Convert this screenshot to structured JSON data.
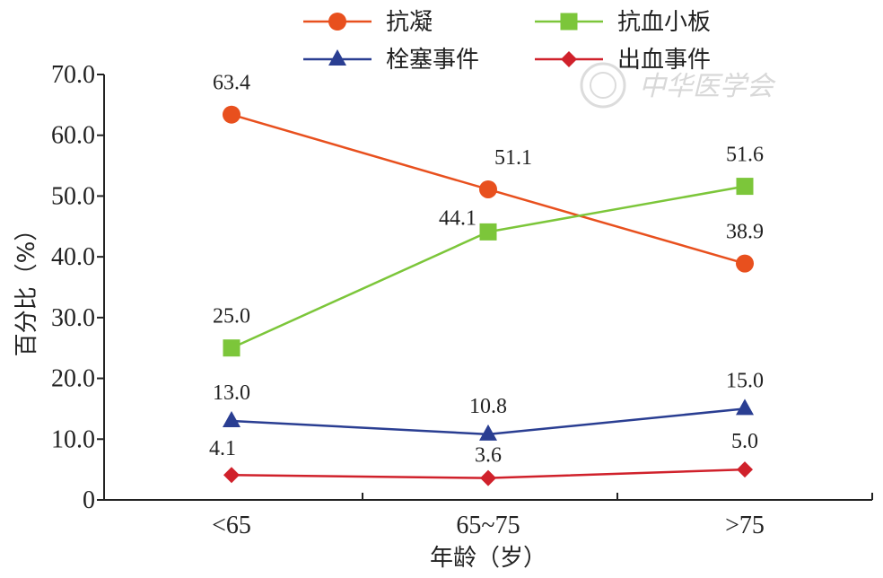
{
  "chart_data": {
    "type": "line",
    "categories": [
      "<65",
      "65~75",
      ">75"
    ],
    "xlabel": "年龄（岁）",
    "ylabel": "百分比（%）",
    "ylim": [
      0,
      70
    ],
    "yticks": [
      0,
      10,
      20,
      30,
      40,
      50,
      60,
      70
    ],
    "ytick_labels": [
      "0",
      "10.0",
      "20.0",
      "30.0",
      "40.0",
      "50.0",
      "60.0",
      "70.0"
    ],
    "grid": false,
    "legend_position": "top",
    "series": [
      {
        "name": "抗凝",
        "values": [
          63.4,
          51.1,
          38.9
        ],
        "labels": [
          "63.4",
          "51.1",
          "38.9"
        ],
        "color": "#e8501e",
        "marker": "circle"
      },
      {
        "name": "抗血小板",
        "values": [
          25.0,
          44.1,
          51.6
        ],
        "labels": [
          "25.0",
          "44.1",
          "51.6"
        ],
        "color": "#7cc63a",
        "marker": "square"
      },
      {
        "name": "栓塞事件",
        "values": [
          13.0,
          10.8,
          15.0
        ],
        "labels": [
          "13.0",
          "10.8",
          "15.0"
        ],
        "color": "#2a3e92",
        "marker": "triangle"
      },
      {
        "name": "出血事件",
        "values": [
          4.1,
          3.6,
          5.0
        ],
        "labels": [
          "4.1",
          "3.6",
          "5.0"
        ],
        "color": "#d0212b",
        "marker": "diamond"
      }
    ]
  },
  "watermark": {
    "text": "中华医学会"
  }
}
